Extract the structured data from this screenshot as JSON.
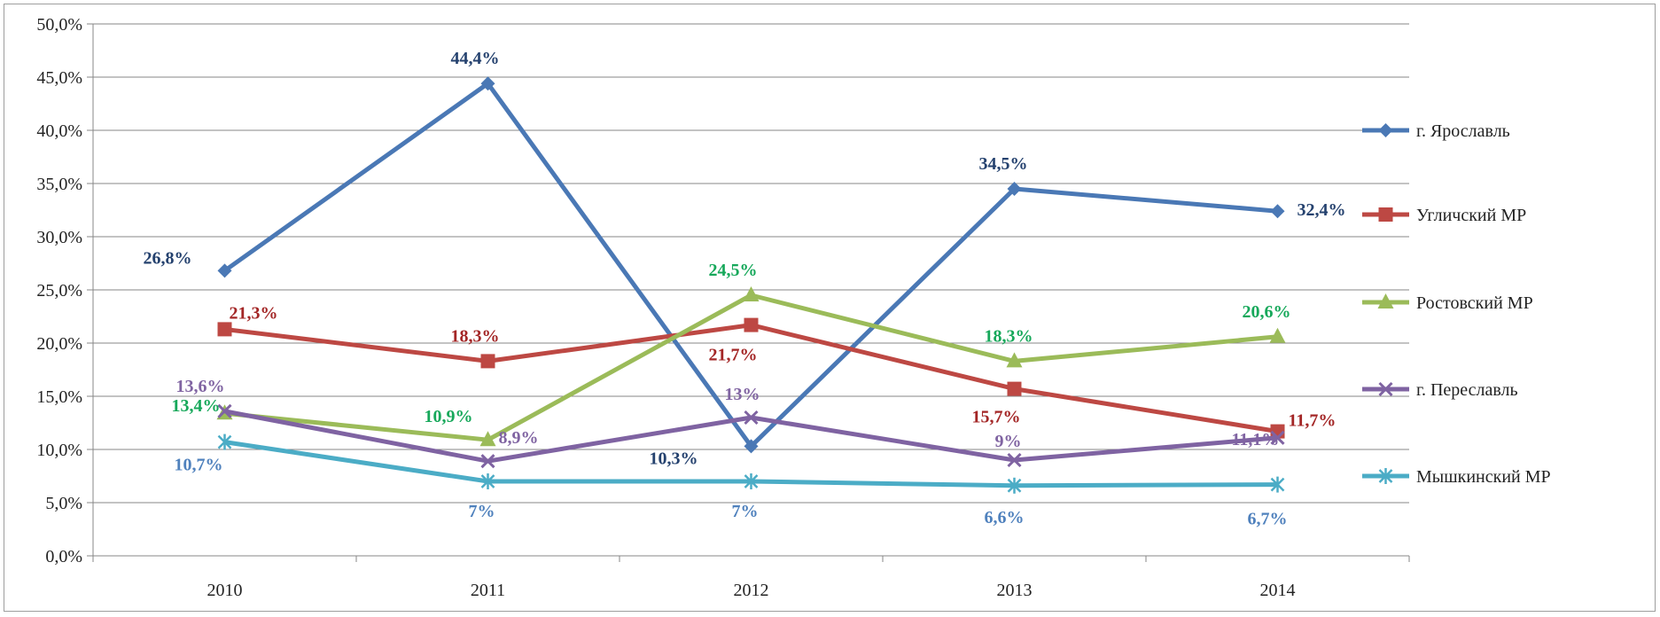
{
  "chart_data": {
    "type": "line",
    "title": "",
    "xlabel": "",
    "ylabel": "",
    "categories": [
      "2010",
      "2011",
      "2012",
      "2013",
      "2014"
    ],
    "ylim": [
      0,
      50
    ],
    "y_ticks": [
      "0,0%",
      "5,0%",
      "10,0%",
      "15,0%",
      "20,0%",
      "25,0%",
      "30,0%",
      "35,0%",
      "40,0%",
      "45,0%",
      "50,0%"
    ],
    "grid": "horizontal",
    "legend_position": "right",
    "series": [
      {
        "name": "г. Ярославль",
        "color": "#4a78b5",
        "label_color": "#24416e",
        "marker": "diamond",
        "values": [
          26.8,
          44.4,
          10.3,
          34.5,
          32.4
        ],
        "labels": [
          "26,8%",
          "44,4%",
          "10,3%",
          "34,5%",
          "32,4%"
        ]
      },
      {
        "name": "Угличский МР",
        "color": "#bd4843",
        "label_color": "#a32626",
        "marker": "square",
        "values": [
          21.3,
          18.3,
          21.7,
          15.7,
          11.7
        ],
        "labels": [
          "21,3%",
          "18,3%",
          "21,7%",
          "15,7%",
          "11,7%"
        ]
      },
      {
        "name": "Ростовский МР",
        "color": "#9bbb59",
        "label_color": "#16a85a",
        "marker": "triangle",
        "values": [
          13.4,
          10.9,
          24.5,
          18.3,
          20.6
        ],
        "labels": [
          "13,4%",
          "10,9%",
          "24,5%",
          "18,3%",
          "20,6%"
        ]
      },
      {
        "name": "г. Переславль",
        "color": "#7f63a2",
        "label_color": "#8064a2",
        "marker": "x",
        "values": [
          13.6,
          8.9,
          13.0,
          9.0,
          11.1
        ],
        "labels": [
          "13,6%",
          "8,9%",
          "13%",
          "9%",
          "11,1%"
        ]
      },
      {
        "name": "Мышкинский МР",
        "color": "#4bacc6",
        "label_color": "#4f81bd",
        "marker": "star",
        "values": [
          10.7,
          7.0,
          7.0,
          6.6,
          6.7
        ],
        "labels": [
          "10,7%",
          "7%",
          "7%",
          "6,6%",
          "6,7%"
        ]
      }
    ]
  }
}
